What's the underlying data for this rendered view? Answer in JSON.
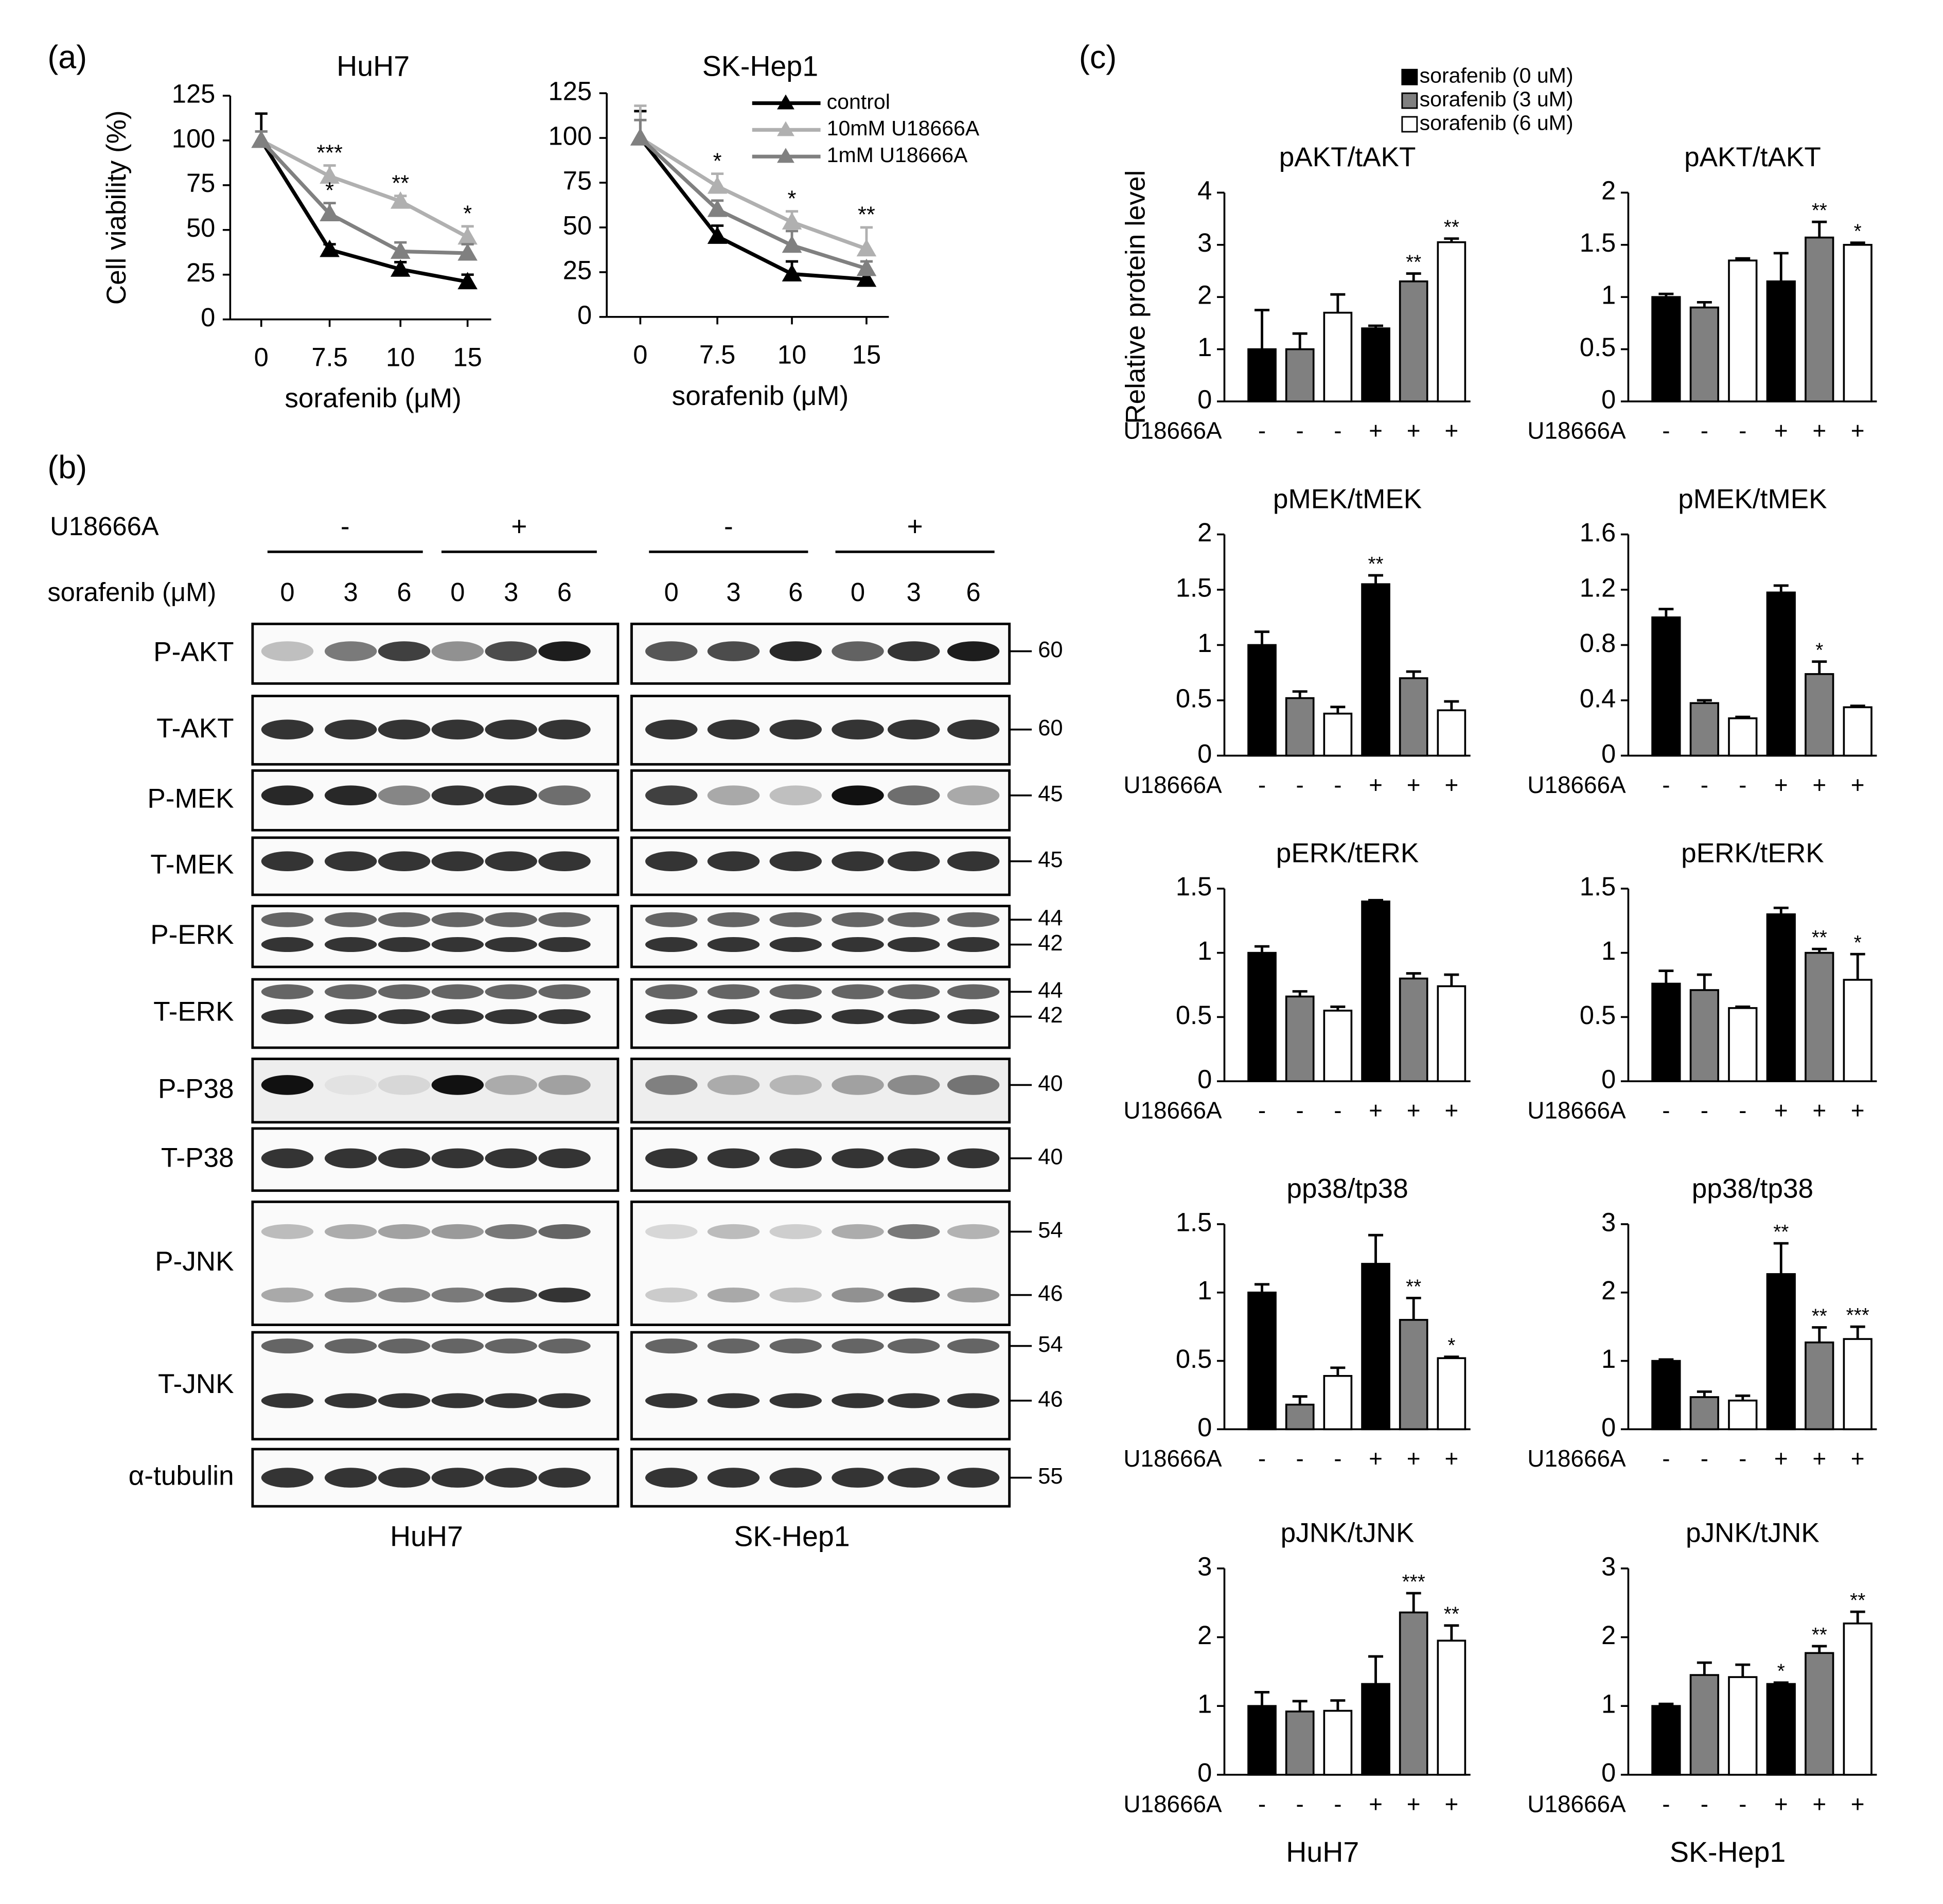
{
  "panel_labels": [
    "(a)",
    "(b)",
    "(c)"
  ],
  "chart_data": [
    {
      "type": "line",
      "title": "HuH7",
      "categories": [
        "0",
        "7.5",
        "10",
        "15"
      ],
      "ylim": [
        0,
        125
      ],
      "yticks": [
        0,
        25,
        50,
        75,
        100,
        125
      ],
      "xlabel": "sorafenib (μM)",
      "ylabel": "Cell viability (%)",
      "series": [
        {
          "name": "control",
          "color": "#000000",
          "values": [
            100,
            39,
            28,
            21
          ],
          "errors": [
            15,
            3,
            4,
            4
          ],
          "significance": [
            null,
            null,
            null,
            null
          ]
        },
        {
          "name": "10mM U18666A",
          "color": "#b0b0b0",
          "values": [
            100,
            80,
            66,
            46
          ],
          "errors": [
            5,
            6,
            3,
            6
          ],
          "significance": [
            null,
            "***",
            "**",
            "*"
          ]
        },
        {
          "name": "1mM U18666A",
          "color": "#808080",
          "values": [
            100,
            59,
            38,
            37
          ],
          "errors": [
            5,
            6,
            5,
            5
          ],
          "significance": [
            null,
            "*",
            null,
            null
          ]
        }
      ]
    },
    {
      "type": "line",
      "title": "SK-Hep1",
      "categories": [
        "0",
        "7.5",
        "10",
        "15"
      ],
      "ylim": [
        0,
        125
      ],
      "yticks": [
        0,
        25,
        50,
        75,
        100,
        125
      ],
      "xlabel": "sorafenib (μM)",
      "legend": "upper right",
      "series": [
        {
          "name": "control",
          "color": "#000000",
          "values": [
            100,
            45,
            24,
            21
          ],
          "errors": [
            15,
            6,
            7,
            4
          ],
          "significance": [
            null,
            null,
            null,
            null
          ]
        },
        {
          "name": "10mM U18666A",
          "color": "#b0b0b0",
          "values": [
            100,
            73,
            53,
            38
          ],
          "errors": [
            18,
            7,
            6,
            12
          ],
          "significance": [
            null,
            "*",
            "*",
            "**"
          ]
        },
        {
          "name": "1mM U18666A",
          "color": "#808080",
          "values": [
            100,
            60,
            40,
            27
          ],
          "errors": [
            10,
            5,
            8,
            4
          ],
          "significance": [
            null,
            null,
            null,
            null
          ]
        }
      ]
    },
    {
      "type": "bar",
      "title": "pAKT/tAKT",
      "x_label": "U18666A",
      "categories": [
        "-",
        "-",
        "-",
        "+",
        "+",
        "+"
      ],
      "values": [
        1.0,
        1.0,
        1.7,
        1.4,
        2.3,
        3.05
      ],
      "errors": [
        0.75,
        0.3,
        0.35,
        0.05,
        0.15,
        0.07
      ],
      "significance": [
        null,
        null,
        null,
        null,
        "**",
        "**"
      ],
      "colors": [
        "#000000",
        "#808080",
        "#ffffff",
        "#000000",
        "#808080",
        "#ffffff"
      ],
      "ylim": [
        0,
        4
      ],
      "yticks": [
        0,
        1,
        2,
        3,
        4
      ],
      "ylabel": "Relative protein level",
      "legend": [
        {
          "name": "sorafenib (0 uM)",
          "color": "#000000"
        },
        {
          "name": "sorafenib (3 uM)",
          "color": "#808080"
        },
        {
          "name": "sorafenib (6 uM)",
          "color": "#ffffff"
        }
      ]
    },
    {
      "type": "bar",
      "title": "pAKT/tAKT",
      "x_label": "U18666A",
      "categories": [
        "-",
        "-",
        "-",
        "+",
        "+",
        "+"
      ],
      "values": [
        1.0,
        0.9,
        1.35,
        1.15,
        1.57,
        1.5
      ],
      "errors": [
        0.03,
        0.05,
        0.02,
        0.27,
        0.15,
        0.02
      ],
      "significance": [
        null,
        null,
        null,
        null,
        "**",
        "*"
      ],
      "colors": [
        "#000000",
        "#808080",
        "#ffffff",
        "#000000",
        "#808080",
        "#ffffff"
      ],
      "ylim": [
        0,
        2
      ],
      "yticks": [
        0,
        0.5,
        1,
        1.5,
        2
      ]
    },
    {
      "type": "bar",
      "title": "pMEK/tMEK",
      "x_label": "U18666A",
      "categories": [
        "-",
        "-",
        "-",
        "+",
        "+",
        "+"
      ],
      "values": [
        1.0,
        0.52,
        0.38,
        1.55,
        0.7,
        0.41
      ],
      "errors": [
        0.12,
        0.06,
        0.06,
        0.08,
        0.06,
        0.08
      ],
      "significance": [
        null,
        null,
        null,
        "**",
        null,
        null
      ],
      "colors": [
        "#000000",
        "#808080",
        "#ffffff",
        "#000000",
        "#808080",
        "#ffffff"
      ],
      "ylim": [
        0,
        2
      ],
      "yticks": [
        0,
        0.5,
        1,
        1.5,
        2
      ]
    },
    {
      "type": "bar",
      "title": "pMEK/tMEK",
      "x_label": "U18666A",
      "categories": [
        "-",
        "-",
        "-",
        "+",
        "+",
        "+"
      ],
      "values": [
        1.0,
        0.38,
        0.27,
        1.18,
        0.59,
        0.35
      ],
      "errors": [
        0.06,
        0.02,
        0.01,
        0.05,
        0.09,
        0.01
      ],
      "significance": [
        null,
        null,
        null,
        null,
        "*",
        null
      ],
      "colors": [
        "#000000",
        "#808080",
        "#ffffff",
        "#000000",
        "#808080",
        "#ffffff"
      ],
      "ylim": [
        0,
        1.6
      ],
      "yticks": [
        0,
        0.4,
        0.8,
        1.2,
        1.6
      ]
    },
    {
      "type": "bar",
      "title": "pERK/tERK",
      "x_label": "U18666A",
      "categories": [
        "-",
        "-",
        "-",
        "+",
        "+",
        "+"
      ],
      "values": [
        1.0,
        0.66,
        0.55,
        1.4,
        0.8,
        0.74
      ],
      "errors": [
        0.05,
        0.04,
        0.03,
        0.01,
        0.04,
        0.09
      ],
      "significance": [
        null,
        null,
        null,
        null,
        null,
        null
      ],
      "colors": [
        "#000000",
        "#808080",
        "#ffffff",
        "#000000",
        "#808080",
        "#ffffff"
      ],
      "ylim": [
        0,
        1.5
      ],
      "yticks": [
        0,
        0.5,
        1,
        1.5
      ]
    },
    {
      "type": "bar",
      "title": "pERK/tERK",
      "x_label": "U18666A",
      "categories": [
        "-",
        "-",
        "-",
        "+",
        "+",
        "+"
      ],
      "values": [
        0.76,
        0.71,
        0.57,
        1.3,
        1.0,
        0.79
      ],
      "errors": [
        0.1,
        0.12,
        0.01,
        0.05,
        0.03,
        0.2
      ],
      "significance": [
        null,
        null,
        null,
        null,
        "**",
        "*"
      ],
      "colors": [
        "#000000",
        "#808080",
        "#ffffff",
        "#000000",
        "#808080",
        "#ffffff"
      ],
      "ylim": [
        0,
        1.5
      ],
      "yticks": [
        0,
        0.5,
        1,
        1.5
      ]
    },
    {
      "type": "bar",
      "title": "pp38/tp38",
      "x_label": "U18666A",
      "categories": [
        "-",
        "-",
        "-",
        "+",
        "+",
        "+"
      ],
      "values": [
        1.0,
        0.18,
        0.39,
        1.21,
        0.8,
        0.52
      ],
      "errors": [
        0.06,
        0.06,
        0.06,
        0.21,
        0.16,
        0.01
      ],
      "significance": [
        null,
        null,
        null,
        null,
        "**",
        "*"
      ],
      "colors": [
        "#000000",
        "#808080",
        "#ffffff",
        "#000000",
        "#808080",
        "#ffffff"
      ],
      "ylim": [
        0,
        1.5
      ],
      "yticks": [
        0,
        0.5,
        1,
        1.5
      ]
    },
    {
      "type": "bar",
      "title": "pp38/tp38",
      "x_label": "U18666A",
      "categories": [
        "-",
        "-",
        "-",
        "+",
        "+",
        "+"
      ],
      "values": [
        1.0,
        0.47,
        0.42,
        2.27,
        1.27,
        1.32
      ],
      "errors": [
        0.02,
        0.08,
        0.07,
        0.45,
        0.22,
        0.18
      ],
      "significance": [
        null,
        null,
        null,
        "**",
        "**",
        "***"
      ],
      "colors": [
        "#000000",
        "#808080",
        "#ffffff",
        "#000000",
        "#808080",
        "#ffffff"
      ],
      "ylim": [
        0,
        3
      ],
      "yticks": [
        0,
        1,
        2,
        3
      ]
    },
    {
      "type": "bar",
      "title": "pJNK/tJNK",
      "x_label": "U18666A",
      "categories": [
        "-",
        "-",
        "-",
        "+",
        "+",
        "+"
      ],
      "values": [
        1.0,
        0.92,
        0.93,
        1.32,
        2.36,
        1.95
      ],
      "errors": [
        0.2,
        0.15,
        0.15,
        0.4,
        0.28,
        0.22
      ],
      "significance": [
        null,
        null,
        null,
        null,
        "***",
        "**"
      ],
      "colors": [
        "#000000",
        "#808080",
        "#ffffff",
        "#000000",
        "#808080",
        "#ffffff"
      ],
      "ylim": [
        0,
        3
      ],
      "yticks": [
        0,
        1,
        2,
        3
      ],
      "column_label": "HuH7"
    },
    {
      "type": "bar",
      "title": "pJNK/tJNK",
      "x_label": "U18666A",
      "categories": [
        "-",
        "-",
        "-",
        "+",
        "+",
        "+"
      ],
      "values": [
        1.0,
        1.45,
        1.42,
        1.32,
        1.77,
        2.2
      ],
      "errors": [
        0.03,
        0.18,
        0.18,
        0.02,
        0.1,
        0.17
      ],
      "significance": [
        null,
        null,
        null,
        "*",
        "**",
        "**"
      ],
      "colors": [
        "#000000",
        "#808080",
        "#ffffff",
        "#000000",
        "#808080",
        "#ffffff"
      ],
      "ylim": [
        0,
        3
      ],
      "yticks": [
        0,
        1,
        2,
        3
      ],
      "column_label": "SK-Hep1"
    }
  ],
  "blot": {
    "treatment_label": "U18666A",
    "treatment_groups": [
      "-",
      "+",
      "-",
      "+"
    ],
    "dose_label": "sorafenib (μM)",
    "doses": [
      "0",
      "3",
      "6",
      "0",
      "3",
      "6",
      "0",
      "3",
      "6",
      "0",
      "3",
      "6"
    ],
    "rows": [
      {
        "label": "P-AKT",
        "markers": [
          "60"
        ]
      },
      {
        "label": "T-AKT",
        "markers": [
          "60"
        ]
      },
      {
        "label": "P-MEK",
        "markers": [
          "45"
        ]
      },
      {
        "label": "T-MEK",
        "markers": [
          "45"
        ]
      },
      {
        "label": "P-ERK",
        "markers": [
          "44",
          "42"
        ]
      },
      {
        "label": "T-ERK",
        "markers": [
          "44",
          "42"
        ]
      },
      {
        "label": "P-P38",
        "markers": [
          "40"
        ]
      },
      {
        "label": "T-P38",
        "markers": [
          "40"
        ]
      },
      {
        "label": "P-JNK",
        "markers": [
          "54",
          "46"
        ]
      },
      {
        "label": "T-JNK",
        "markers": [
          "54",
          "46"
        ]
      },
      {
        "label": "α-tubulin",
        "markers": [
          "55"
        ]
      }
    ],
    "cell_lines": [
      "HuH7",
      "SK-Hep1"
    ]
  }
}
